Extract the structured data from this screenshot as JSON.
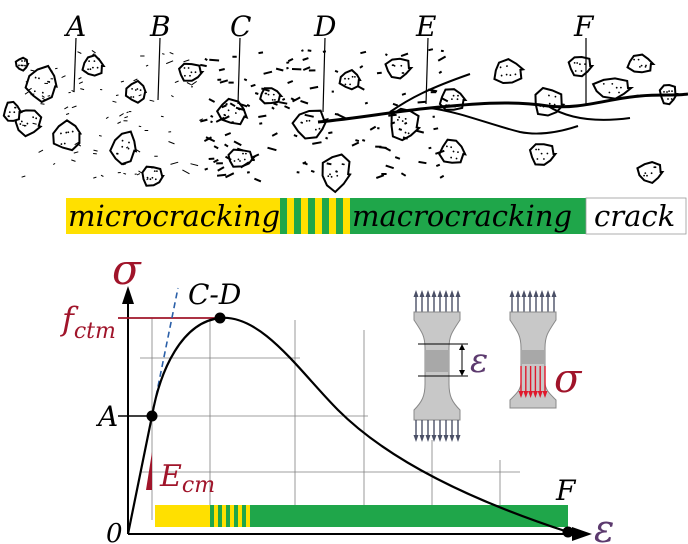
{
  "zones": {
    "labels": [
      "A",
      "B",
      "C",
      "D",
      "E",
      "F"
    ]
  },
  "bar": {
    "micro_label": "microcracking",
    "macro_label": "macrocracking",
    "crack_label": "crack",
    "colors": {
      "micro": "#ffe000",
      "macro": "#1fa64a",
      "crack": "#ffffff"
    }
  },
  "graph": {
    "y_axis_symbol": "σ",
    "x_axis_symbol": "ε",
    "origin_label": "0",
    "peak_label": "f",
    "peak_subscript": "ctm",
    "point_a_label": "A",
    "point_cd_label": "C-D",
    "point_f_label": "F",
    "modulus_label": "E",
    "modulus_subscript": "cm",
    "colors": {
      "accent": "#a0142a",
      "purple": "#5c3a6e",
      "dashed": "#2a5fa8"
    }
  },
  "specimens": {
    "strain_symbol": "ε",
    "stress_symbol": "σ"
  }
}
